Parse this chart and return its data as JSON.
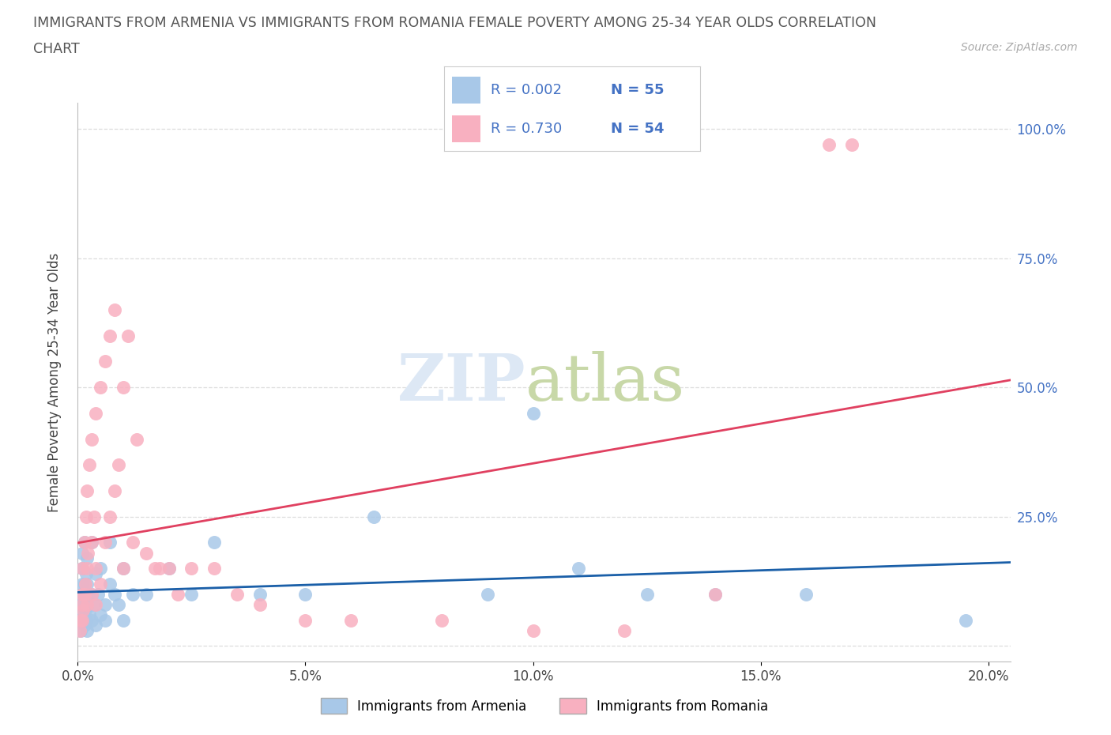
{
  "title_line1": "IMMIGRANTS FROM ARMENIA VS IMMIGRANTS FROM ROMANIA FEMALE POVERTY AMONG 25-34 YEAR OLDS CORRELATION",
  "title_line2": "CHART",
  "source_text": "Source: ZipAtlas.com",
  "ylabel": "Female Poverty Among 25-34 Year Olds",
  "xlim": [
    0.0,
    0.205
  ],
  "ylim": [
    -0.03,
    1.05
  ],
  "xticks": [
    0.0,
    0.05,
    0.1,
    0.15,
    0.2
  ],
  "xtick_labels": [
    "0.0%",
    "5.0%",
    "10.0%",
    "15.0%",
    "20.0%"
  ],
  "yticks": [
    0.0,
    0.25,
    0.5,
    0.75,
    1.0
  ],
  "ytick_labels": [
    "",
    "25.0%",
    "50.0%",
    "75.0%",
    "100.0%"
  ],
  "armenia_fill_color": "#a8c8e8",
  "romania_fill_color": "#f8b0c0",
  "armenia_line_color": "#1a5fa8",
  "romania_line_color": "#e04060",
  "watermark_zip_color": "#dde8f5",
  "watermark_atlas_color": "#c8d8a8",
  "legend_R_armenia": "0.002",
  "legend_N_armenia": "55",
  "legend_R_romania": "0.730",
  "legend_N_romania": "54",
  "armenia_label": "Immigrants from Armenia",
  "romania_label": "Immigrants from Romania",
  "armenia_x": [
    0.0005,
    0.0006,
    0.0007,
    0.0008,
    0.0009,
    0.001,
    0.001,
    0.001,
    0.001,
    0.0012,
    0.0013,
    0.0015,
    0.0015,
    0.0015,
    0.0017,
    0.0018,
    0.0019,
    0.002,
    0.002,
    0.002,
    0.002,
    0.0022,
    0.0025,
    0.003,
    0.003,
    0.003,
    0.0035,
    0.004,
    0.004,
    0.0045,
    0.005,
    0.005,
    0.006,
    0.006,
    0.007,
    0.007,
    0.008,
    0.009,
    0.01,
    0.01,
    0.012,
    0.015,
    0.02,
    0.025,
    0.03,
    0.04,
    0.05,
    0.065,
    0.09,
    0.1,
    0.11,
    0.125,
    0.14,
    0.16,
    0.195
  ],
  "armenia_y": [
    0.05,
    0.08,
    0.03,
    0.1,
    0.12,
    0.05,
    0.08,
    0.15,
    0.18,
    0.06,
    0.1,
    0.04,
    0.12,
    0.2,
    0.07,
    0.05,
    0.14,
    0.03,
    0.08,
    0.12,
    0.17,
    0.1,
    0.06,
    0.05,
    0.1,
    0.2,
    0.08,
    0.04,
    0.14,
    0.1,
    0.06,
    0.15,
    0.08,
    0.05,
    0.12,
    0.2,
    0.1,
    0.08,
    0.05,
    0.15,
    0.1,
    0.1,
    0.15,
    0.1,
    0.2,
    0.1,
    0.1,
    0.25,
    0.1,
    0.45,
    0.15,
    0.1,
    0.1,
    0.1,
    0.05
  ],
  "romania_x": [
    0.0005,
    0.0007,
    0.0009,
    0.001,
    0.001,
    0.001,
    0.0012,
    0.0015,
    0.0015,
    0.0017,
    0.0018,
    0.002,
    0.002,
    0.002,
    0.0022,
    0.0025,
    0.003,
    0.003,
    0.003,
    0.0035,
    0.004,
    0.004,
    0.004,
    0.005,
    0.005,
    0.006,
    0.006,
    0.007,
    0.007,
    0.008,
    0.008,
    0.009,
    0.01,
    0.01,
    0.011,
    0.012,
    0.013,
    0.015,
    0.017,
    0.018,
    0.02,
    0.022,
    0.025,
    0.03,
    0.035,
    0.04,
    0.05,
    0.06,
    0.08,
    0.1,
    0.12,
    0.14,
    0.165,
    0.17
  ],
  "romania_y": [
    0.03,
    0.05,
    0.08,
    0.05,
    0.1,
    0.15,
    0.07,
    0.1,
    0.2,
    0.12,
    0.25,
    0.08,
    0.15,
    0.3,
    0.18,
    0.35,
    0.1,
    0.2,
    0.4,
    0.25,
    0.08,
    0.15,
    0.45,
    0.12,
    0.5,
    0.2,
    0.55,
    0.25,
    0.6,
    0.3,
    0.65,
    0.35,
    0.15,
    0.5,
    0.6,
    0.2,
    0.4,
    0.18,
    0.15,
    0.15,
    0.15,
    0.1,
    0.15,
    0.15,
    0.1,
    0.08,
    0.05,
    0.05,
    0.05,
    0.03,
    0.03,
    0.1,
    0.97,
    0.97
  ]
}
